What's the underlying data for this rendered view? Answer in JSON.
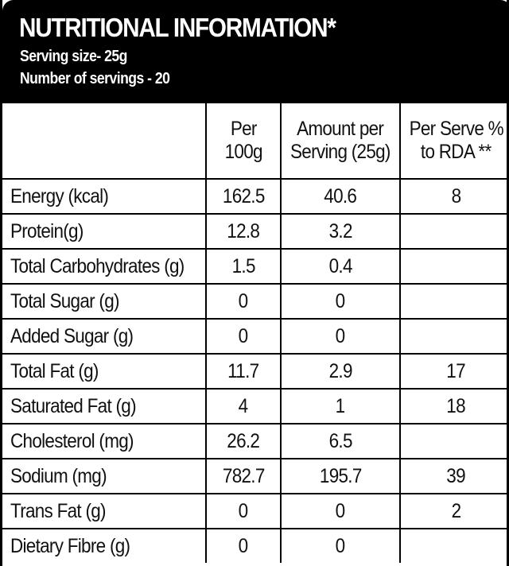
{
  "header": {
    "title": "NUTRITIONAL INFORMATION*",
    "serving_size": "Serving size- 25g",
    "servings": "Number of servings - 20"
  },
  "table": {
    "columns": [
      {
        "line1": "",
        "line2": ""
      },
      {
        "line1": "Per",
        "line2": "100g"
      },
      {
        "line1": "Amount per",
        "line2": "Serving (25g)"
      },
      {
        "line1": "Per Serve %",
        "line2": "to RDA **"
      }
    ],
    "rows": [
      {
        "name": "Energy (kcal)",
        "per100g": "162.5",
        "per_serving": "40.6",
        "rda": "8"
      },
      {
        "name": "Protein(g)",
        "per100g": "12.8",
        "per_serving": "3.2",
        "rda": ""
      },
      {
        "name": "Total Carbohydrates (g)",
        "per100g": "1.5",
        "per_serving": "0.4",
        "rda": ""
      },
      {
        "name": "Total Sugar (g)",
        "per100g": "0",
        "per_serving": "0",
        "rda": ""
      },
      {
        "name": "Added Sugar (g)",
        "per100g": "0",
        "per_serving": "0",
        "rda": ""
      },
      {
        "name": "Total Fat (g)",
        "per100g": "11.7",
        "per_serving": "2.9",
        "rda": "17"
      },
      {
        "name": "Saturated Fat (g)",
        "per100g": "4",
        "per_serving": "1",
        "rda": "18"
      },
      {
        "name": "Cholesterol (mg)",
        "per100g": "26.2",
        "per_serving": "6.5",
        "rda": ""
      },
      {
        "name": "Sodium (mg)",
        "per100g": "782.7",
        "per_serving": "195.7",
        "rda": "39"
      },
      {
        "name": "Trans Fat (g)",
        "per100g": "0",
        "per_serving": "0",
        "rda": "2"
      },
      {
        "name": "Dietary Fibre (g)",
        "per100g": "0",
        "per_serving": "0",
        "rda": ""
      }
    ]
  }
}
